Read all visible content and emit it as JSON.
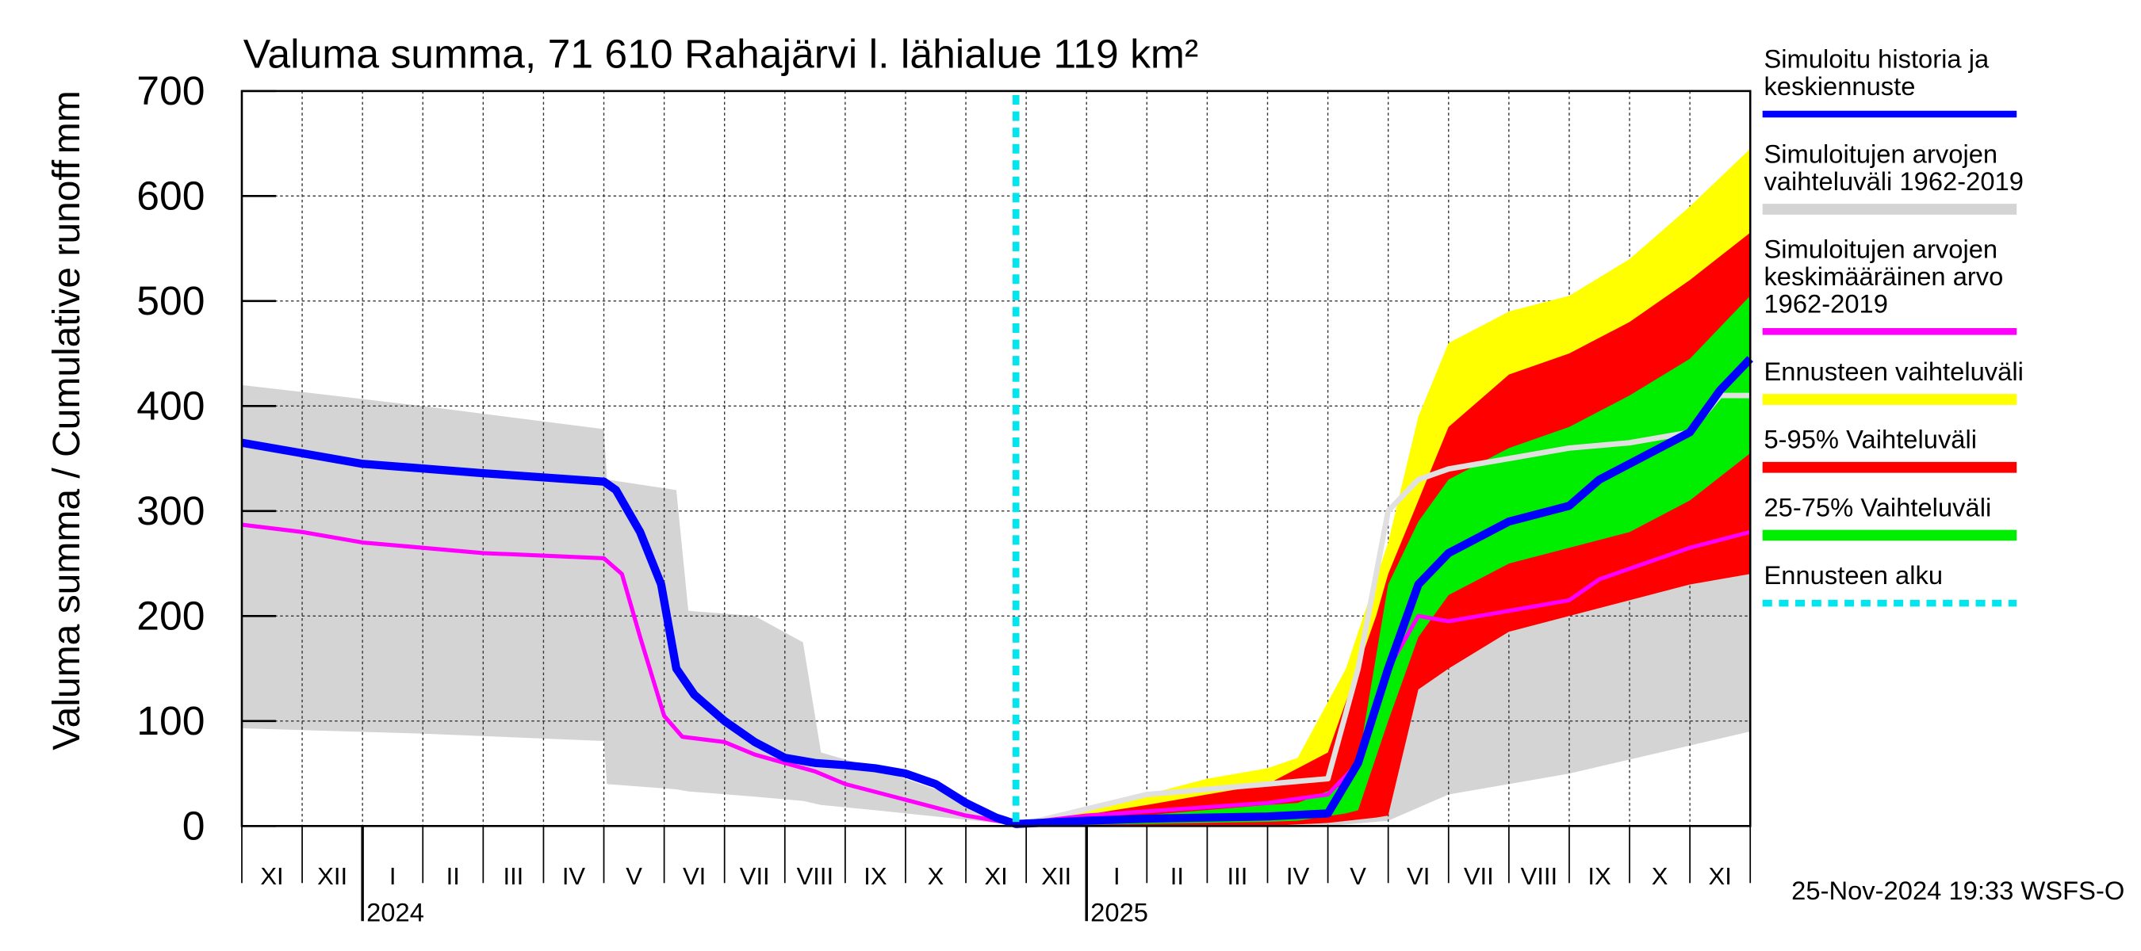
{
  "chart_data": {
    "type": "cumulative-runoff",
    "title": "Valuma summa, 71 610 Rahajärvi l. lähialue 119 km²",
    "ylabel": "Valuma summa / Cumulative runoff",
    "yunit": "mm",
    "footer": "25-Nov-2024 19:33 WSFS-O",
    "xlim": [
      0,
      25
    ],
    "ylim": [
      0,
      700
    ],
    "yticks": [
      0,
      100,
      200,
      300,
      400,
      500,
      600,
      700
    ],
    "xticks": [
      0,
      1,
      2,
      3,
      4,
      5,
      6,
      7,
      8,
      9,
      10,
      11,
      12,
      13,
      14,
      15,
      16,
      17,
      18,
      19,
      20,
      21,
      22,
      23,
      24,
      25
    ],
    "categories": [
      "XI",
      "XII",
      "I",
      "II",
      "III",
      "IV",
      "V",
      "VI",
      "VII",
      "VIII",
      "IX",
      "X",
      "XI",
      "XII",
      "I",
      "II",
      "III",
      "IV",
      "V",
      "VI",
      "VII",
      "VIII",
      "IX",
      "X",
      "XI"
    ],
    "year_labels": [
      {
        "value": 2,
        "label": "2024"
      },
      {
        "value": 14,
        "label": "2025"
      }
    ],
    "grid": true,
    "series": [
      {
        "kind": "band",
        "name": [
          "Simuloitujen arvojen",
          "vaihteluväli 1962-2019"
        ],
        "color": "#d4d4d4",
        "x": [
          0,
          3,
          6,
          6.05,
          7.2,
          7.4,
          8.5,
          9.3,
          9.6,
          10.5,
          11.5,
          12.5,
          12.83,
          14,
          16,
          17,
          18,
          19,
          20,
          22,
          25
        ],
        "low": [
          93,
          88,
          81,
          40,
          35,
          33,
          28,
          24,
          20,
          15,
          9,
          3,
          0,
          0,
          0,
          0,
          0,
          5,
          30,
          50,
          90
        ],
        "high": [
          420,
          400,
          378,
          330,
          320,
          205,
          200,
          175,
          70,
          55,
          35,
          10,
          2,
          15,
          30,
          40,
          50,
          240,
          240,
          240,
          240
        ]
      },
      {
        "kind": "band",
        "name": [
          "Ennusteen vaihteluväli"
        ],
        "color": "#ffff00",
        "x": [
          12.83,
          14,
          16,
          17,
          17.5,
          18.3,
          19,
          19.5,
          20,
          21,
          22,
          23,
          24,
          25
        ],
        "low": [
          0,
          0,
          0,
          3,
          3,
          5,
          20,
          180,
          200,
          215,
          225,
          230,
          235,
          240
        ],
        "high": [
          0,
          15,
          45,
          55,
          65,
          150,
          270,
          390,
          460,
          490,
          505,
          540,
          590,
          645
        ]
      },
      {
        "kind": "band",
        "name": [
          "5-95% Vaihteluväli"
        ],
        "color": "#ff0000",
        "x": [
          12.83,
          15,
          17,
          18,
          18.8,
          19,
          19.5,
          20,
          21,
          22,
          23,
          24,
          25
        ],
        "low": [
          0,
          0,
          0,
          3,
          8,
          10,
          130,
          150,
          185,
          200,
          215,
          230,
          240
        ],
        "high": [
          0,
          20,
          40,
          70,
          200,
          240,
          310,
          380,
          430,
          450,
          480,
          520,
          565
        ]
      },
      {
        "kind": "band",
        "name": [
          "25-75% Vaihteluväli"
        ],
        "color": "#00ee00",
        "x": [
          12.83,
          17,
          17.5,
          18.3,
          18.5,
          19,
          19.5,
          20,
          21,
          22,
          23,
          24,
          25
        ],
        "low": [
          0,
          4,
          5,
          12,
          15,
          100,
          180,
          220,
          250,
          265,
          280,
          310,
          355
        ],
        "high": [
          0,
          20,
          22,
          40,
          60,
          230,
          290,
          330,
          360,
          380,
          410,
          445,
          505
        ]
      },
      {
        "kind": "line",
        "color": "#e0e0e0",
        "width": 4,
        "x": [
          12.83,
          15,
          16,
          17,
          18,
          18.5,
          19,
          19.5,
          20,
          21,
          22,
          23,
          24,
          24.5,
          25
        ],
        "values": [
          0,
          30,
          35,
          40,
          45,
          150,
          300,
          330,
          340,
          350,
          360,
          365,
          375,
          410,
          410
        ]
      },
      {
        "kind": "line",
        "name": [
          "Simuloitujen arvojen",
          "keskimääräinen arvo",
          "   1962-2019"
        ],
        "color": "#ff00ff",
        "width": 3,
        "x": [
          0,
          1,
          2,
          4,
          6,
          6.3,
          6.6,
          7,
          7.3,
          8,
          8.5,
          9,
          9.5,
          10,
          11,
          12,
          12.83,
          14,
          16,
          17,
          18,
          18.5,
          19,
          19.5,
          20,
          21,
          22,
          22.5,
          23,
          24,
          25
        ],
        "values": [
          287,
          280,
          270,
          260,
          255,
          240,
          180,
          105,
          85,
          80,
          68,
          60,
          52,
          40,
          25,
          10,
          2,
          10,
          18,
          22,
          30,
          60,
          150,
          200,
          195,
          205,
          215,
          235,
          245,
          265,
          280
        ]
      },
      {
        "kind": "line",
        "name": [
          "Simuloitu historia ja",
          "keskiennuste"
        ],
        "color": "#0000ff",
        "width": 6,
        "x": [
          0,
          1,
          2,
          4,
          6,
          6.2,
          6.6,
          6.95,
          7.2,
          7.5,
          8,
          8.5,
          9,
          9.5,
          10,
          10.5,
          11,
          11.5,
          12,
          12.5,
          12.83,
          14,
          15,
          16,
          17,
          18,
          18.5,
          19,
          19.5,
          20,
          21,
          22,
          22.5,
          23,
          24,
          24.5,
          25
        ],
        "values": [
          365,
          355,
          345,
          336,
          328,
          320,
          280,
          230,
          150,
          125,
          100,
          80,
          65,
          60,
          58,
          55,
          50,
          40,
          22,
          8,
          2,
          5,
          7,
          8,
          9,
          12,
          60,
          150,
          230,
          260,
          290,
          305,
          330,
          345,
          375,
          415,
          445
        ]
      }
    ],
    "forecast_start": {
      "x": 12.83,
      "name": [
        "Ennusteen alku"
      ],
      "color": "#00e5ee"
    },
    "legend_order": [
      6,
      0,
      5,
      1,
      2,
      3
    ]
  }
}
